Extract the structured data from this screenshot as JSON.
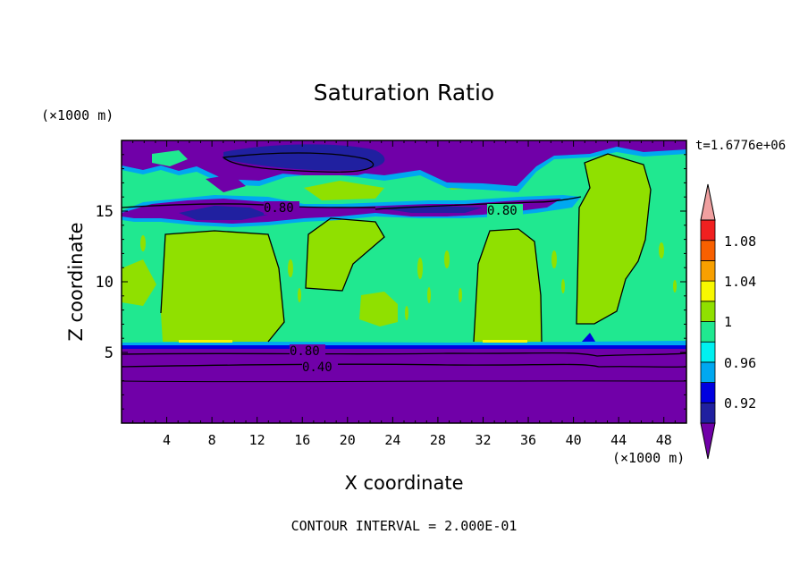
{
  "chart_data": {
    "type": "heatmap",
    "title": "Saturation Ratio",
    "time_label": "t=1.6776e+06",
    "xlabel": "X coordinate",
    "ylabel": "Z coordinate",
    "x_unit": "(×1000 m)",
    "y_unit": "(×1000 m)",
    "footer": "CONTOUR INTERVAL = 2.000E-01",
    "xlim": [
      0,
      50
    ],
    "ylim": [
      0,
      20
    ],
    "x_ticks": [
      "4",
      "8",
      "12",
      "16",
      "20",
      "24",
      "28",
      "32",
      "36",
      "40",
      "44",
      "48"
    ],
    "y_ticks": [
      "5",
      "10",
      "15"
    ],
    "contour_labels": [
      "0.80",
      "0.80",
      "0.80",
      "0.40"
    ],
    "colorbar": {
      "labels": [
        "1.08",
        "1.04",
        "1",
        "0.96",
        "0.92"
      ],
      "levels": [
        {
          "color": "#7000a8"
        },
        {
          "color": "#2020a0"
        },
        {
          "color": "#0000e0"
        },
        {
          "color": "#00a8f0"
        },
        {
          "color": "#00f0f0"
        },
        {
          "color": "#20e890"
        },
        {
          "color": "#90e000"
        },
        {
          "color": "#f8f800"
        },
        {
          "color": "#f8a000"
        },
        {
          "color": "#f86000"
        },
        {
          "color": "#f02020"
        },
        {
          "color": "#f0a0a0"
        }
      ]
    }
  }
}
